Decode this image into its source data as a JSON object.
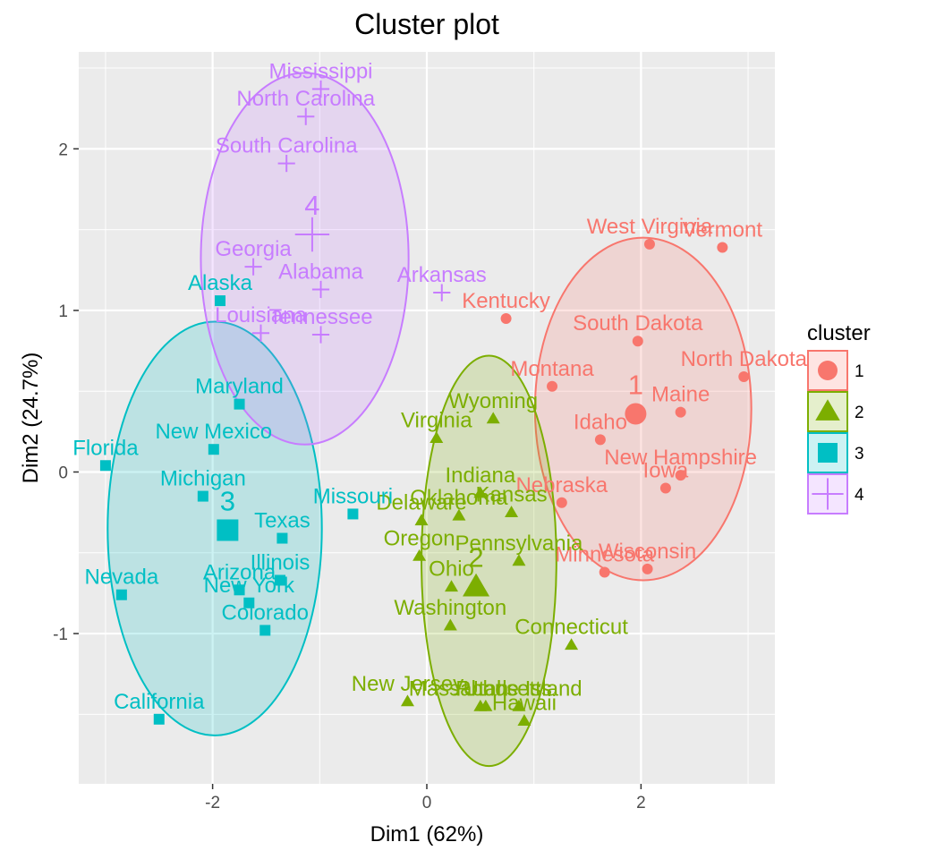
{
  "chart_data": {
    "type": "scatter",
    "title": "Cluster plot",
    "xlabel": "Dim1 (62%)",
    "ylabel": "Dim2 (24.7%)",
    "xlim": [
      -3.25,
      3.25
    ],
    "ylim": [
      -1.93,
      2.6
    ],
    "xticks": [
      -2,
      0,
      2
    ],
    "xtick_labels": [
      "-2",
      "0",
      "2"
    ],
    "yticks": [
      -1,
      0,
      1,
      2
    ],
    "ytick_labels": [
      "-1",
      "0",
      "1",
      "2"
    ],
    "grid": true,
    "legend_position": "right",
    "legend_title": "cluster",
    "clusters": [
      {
        "name": "1",
        "color": "#f8766d",
        "shape": "circle",
        "centroid": [
          1.95,
          0.36
        ],
        "ellipse": {
          "cx": 2.02,
          "cy": 0.39,
          "rx": 1.01,
          "ry": 1.06
        },
        "points": [
          {
            "label": "West Virginia",
            "x": 2.08,
            "y": 1.41
          },
          {
            "label": "Vermont",
            "x": 2.76,
            "y": 1.39
          },
          {
            "label": "Kentucky",
            "x": 0.74,
            "y": 0.95
          },
          {
            "label": "South Dakota",
            "x": 1.97,
            "y": 0.81
          },
          {
            "label": "North Dakota",
            "x": 2.96,
            "y": 0.59
          },
          {
            "label": "Montana",
            "x": 1.17,
            "y": 0.53
          },
          {
            "label": "Maine",
            "x": 2.37,
            "y": 0.37
          },
          {
            "label": "Idaho",
            "x": 1.62,
            "y": 0.2
          },
          {
            "label": "New Hampshire",
            "x": 2.37,
            "y": -0.02
          },
          {
            "label": "Iowa",
            "x": 2.23,
            "y": -0.1
          },
          {
            "label": "Nebraska",
            "x": 1.26,
            "y": -0.19
          },
          {
            "label": "Wisconsin",
            "x": 2.06,
            "y": -0.6
          },
          {
            "label": "Minnesota",
            "x": 1.66,
            "y": -0.62
          }
        ]
      },
      {
        "name": "2",
        "color": "#7cae00",
        "shape": "triangle",
        "centroid": [
          0.46,
          -0.71
        ],
        "ellipse": {
          "cx": 0.58,
          "cy": -0.55,
          "rx": 0.63,
          "ry": 1.27
        },
        "points": [
          {
            "label": "Wyoming",
            "x": 0.62,
            "y": 0.33
          },
          {
            "label": "Virginia",
            "x": 0.09,
            "y": 0.21
          },
          {
            "label": "Indiana",
            "x": 0.5,
            "y": -0.13
          },
          {
            "label": "Kansas",
            "x": 0.79,
            "y": -0.25
          },
          {
            "label": "Oklahoma",
            "x": 0.3,
            "y": -0.27
          },
          {
            "label": "Delaware",
            "x": -0.05,
            "y": -0.3
          },
          {
            "label": "Pennsylvania",
            "x": 0.86,
            "y": -0.55
          },
          {
            "label": "Oregon",
            "x": -0.07,
            "y": -0.52
          },
          {
            "label": "Ohio",
            "x": 0.23,
            "y": -0.71
          },
          {
            "label": "Washington",
            "x": 0.22,
            "y": -0.95
          },
          {
            "label": "Connecticut",
            "x": 1.35,
            "y": -1.07
          },
          {
            "label": "New Jersey",
            "x": -0.18,
            "y": -1.42
          },
          {
            "label": "Massachusetts",
            "x": 0.5,
            "y": -1.45
          },
          {
            "label": "Rhode Island",
            "x": 0.86,
            "y": -1.45
          },
          {
            "label": "Utah",
            "x": 0.55,
            "y": -1.45
          },
          {
            "label": "Hawaii",
            "x": 0.91,
            "y": -1.54
          }
        ]
      },
      {
        "name": "3",
        "color": "#00bfc4",
        "shape": "square",
        "centroid": [
          -1.86,
          -0.36
        ],
        "ellipse": {
          "cx": -1.98,
          "cy": -0.35,
          "rx": 1.0,
          "ry": 1.28
        },
        "points": [
          {
            "label": "Alaska",
            "x": -1.93,
            "y": 1.06
          },
          {
            "label": "Maryland",
            "x": -1.75,
            "y": 0.42
          },
          {
            "label": "New Mexico",
            "x": -1.99,
            "y": 0.14
          },
          {
            "label": "Florida",
            "x": -3.0,
            "y": 0.04
          },
          {
            "label": "Michigan",
            "x": -2.09,
            "y": -0.15
          },
          {
            "label": "Missouri",
            "x": -0.69,
            "y": -0.26
          },
          {
            "label": "Texas",
            "x": -1.35,
            "y": -0.41
          },
          {
            "label": "Illinois",
            "x": -1.37,
            "y": -0.67
          },
          {
            "label": "Arizona",
            "x": -1.75,
            "y": -0.73
          },
          {
            "label": "New York",
            "x": -1.66,
            "y": -0.81
          },
          {
            "label": "Nevada",
            "x": -2.85,
            "y": -0.76
          },
          {
            "label": "Colorado",
            "x": -1.51,
            "y": -0.98
          },
          {
            "label": "California",
            "x": -2.5,
            "y": -1.53
          }
        ]
      },
      {
        "name": "4",
        "color": "#c77cff",
        "shape": "cross",
        "centroid": [
          -1.07,
          1.47
        ],
        "ellipse": {
          "cx": -1.14,
          "cy": 1.32,
          "rx": 0.97,
          "ry": 1.15
        },
        "points": [
          {
            "label": "Mississippi",
            "x": -0.99,
            "y": 2.37
          },
          {
            "label": "North Carolina",
            "x": -1.13,
            "y": 2.2
          },
          {
            "label": "South Carolina",
            "x": -1.31,
            "y": 1.91
          },
          {
            "label": "Georgia",
            "x": -1.62,
            "y": 1.27
          },
          {
            "label": "Alabama",
            "x": -0.99,
            "y": 1.13
          },
          {
            "label": "Arkansas",
            "x": 0.14,
            "y": 1.11
          },
          {
            "label": "Louisiana",
            "x": -1.55,
            "y": 0.86
          },
          {
            "label": "Tennessee",
            "x": -0.99,
            "y": 0.85
          }
        ]
      }
    ]
  }
}
